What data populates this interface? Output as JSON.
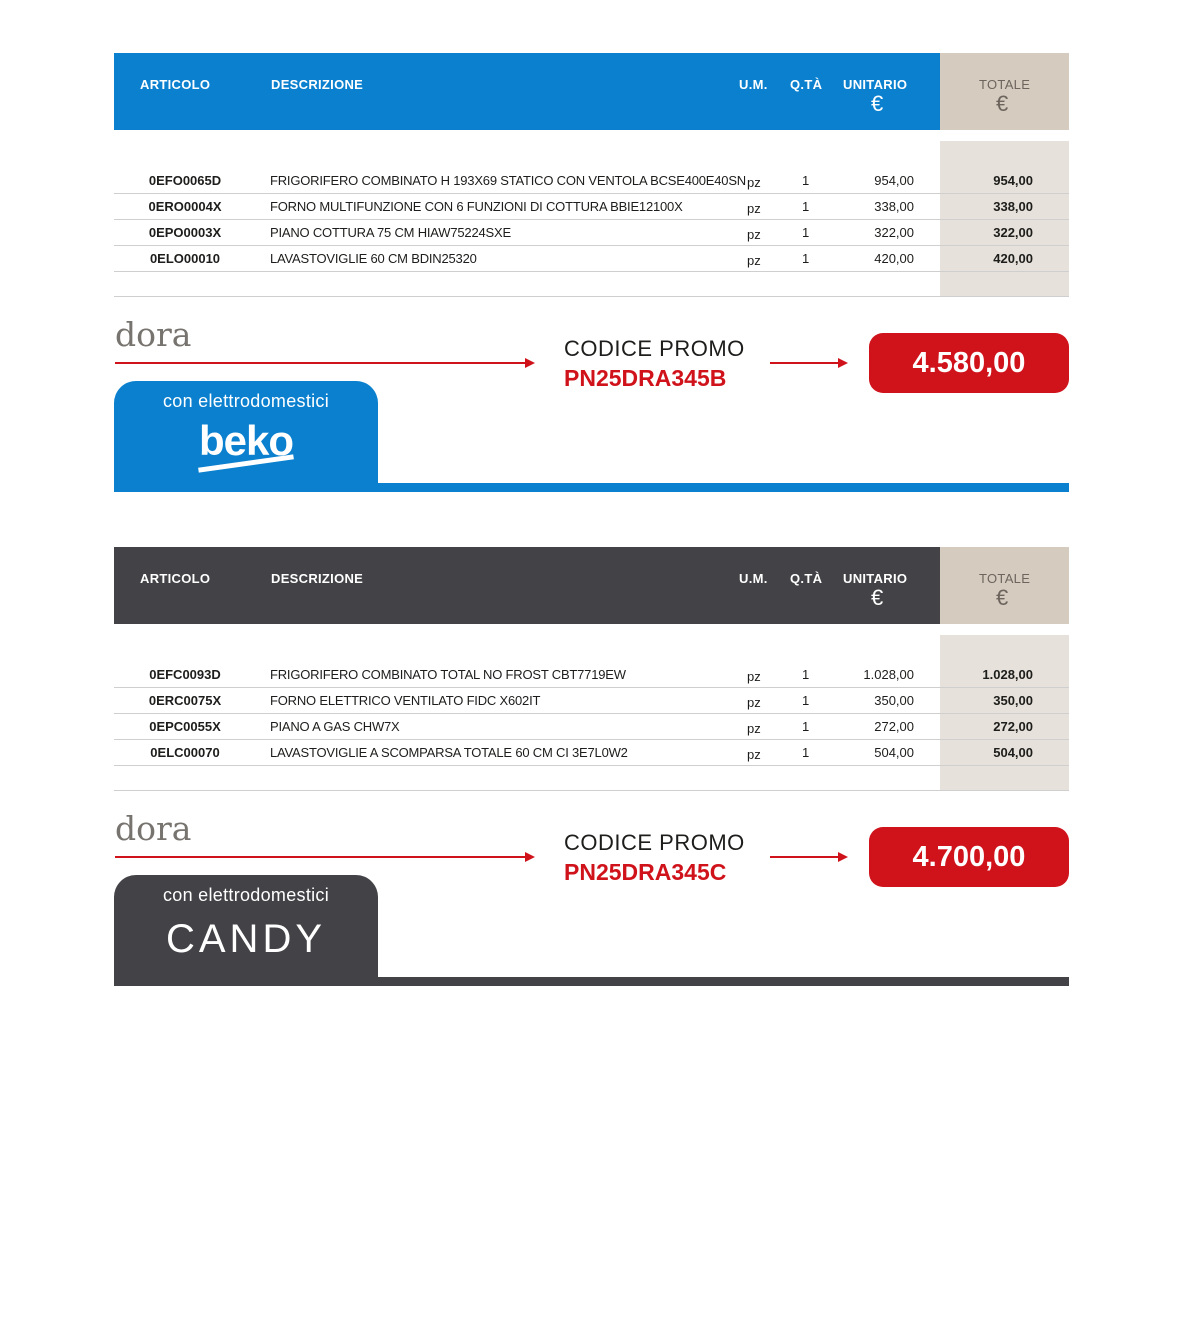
{
  "colors": {
    "beko": "#0a80cf",
    "candy": "#434347",
    "promo_red": "#d0121b",
    "totale_header": "#d5cbbf",
    "totale_body": "#e6e1da"
  },
  "headers": {
    "articolo": "ARTICOLO",
    "descrizione": "DESCRIZIONE",
    "um": "U.M.",
    "qta": "Q.TÀ",
    "unitario": "UNITARIO",
    "totale": "TOTALE",
    "currency": "€"
  },
  "sections": [
    {
      "brand_line": "dora",
      "rows": [
        {
          "articolo": "0EFO0065D",
          "descrizione": "FRIGORIFERO COMBINATO H 193X69 STATICO CON VENTOLA BCSE400E40SN",
          "um": "pz",
          "qta": "1",
          "unitario": "954,00",
          "totale": "954,00"
        },
        {
          "articolo": "0ERO0004X",
          "descrizione": "FORNO MULTIFUNZIONE CON 6 FUNZIONI DI COTTURA BBIE12100X",
          "um": "pz",
          "qta": "1",
          "unitario": "338,00",
          "totale": "338,00"
        },
        {
          "articolo": "0EPO0003X",
          "descrizione": "PIANO COTTURA 75 CM HIAW75224SXE",
          "um": "pz",
          "qta": "1",
          "unitario": "322,00",
          "totale": "322,00"
        },
        {
          "articolo": "0ELO00010",
          "descrizione": "LAVASTOVIGLIE 60 CM BDIN25320",
          "um": "pz",
          "qta": "1",
          "unitario": "420,00",
          "totale": "420,00"
        }
      ],
      "promo_label": "CODICE PROMO",
      "promo_code": "PN25DRA345B",
      "price": "4.580,00",
      "tab_label": "con elettrodomestici",
      "logo": "beko"
    },
    {
      "brand_line": "dora",
      "rows": [
        {
          "articolo": "0EFC0093D",
          "descrizione": "FRIGORIFERO COMBINATO TOTAL NO FROST CBT7719EW",
          "um": "pz",
          "qta": "1",
          "unitario": "1.028,00",
          "totale": "1.028,00"
        },
        {
          "articolo": "0ERC0075X",
          "descrizione": "FORNO ELETTRICO VENTILATO FIDC X602IT",
          "um": "pz",
          "qta": "1",
          "unitario": "350,00",
          "totale": "350,00"
        },
        {
          "articolo": "0EPC0055X",
          "descrizione": "PIANO A GAS CHW7X",
          "um": "pz",
          "qta": "1",
          "unitario": "272,00",
          "totale": "272,00"
        },
        {
          "articolo": "0ELC00070",
          "descrizione": "LAVASTOVIGLIE A SCOMPARSA TOTALE 60 CM CI 3E7L0W2",
          "um": "pz",
          "qta": "1",
          "unitario": "504,00",
          "totale": "504,00"
        }
      ],
      "promo_label": "CODICE PROMO",
      "promo_code": "PN25DRA345C",
      "price": "4.700,00",
      "tab_label": "con elettrodomestici",
      "logo": "CANDY"
    }
  ]
}
